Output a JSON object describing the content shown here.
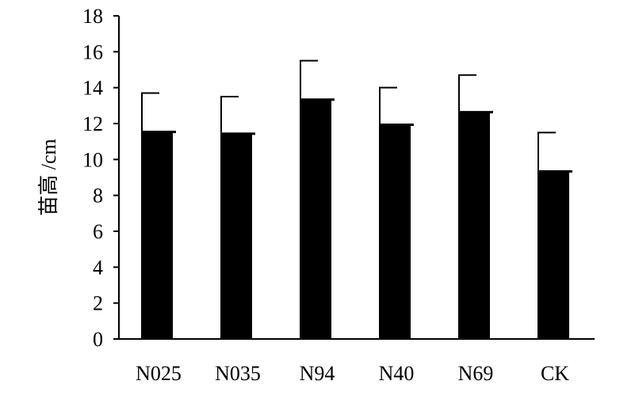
{
  "chart_data": {
    "type": "bar",
    "title": "",
    "xlabel": "",
    "ylabel": "苗高 /cm",
    "categories": [
      "N025",
      "N035",
      "N94",
      "N40",
      "N69",
      "CK"
    ],
    "values": [
      11.6,
      11.5,
      13.4,
      12.0,
      12.7,
      9.4
    ],
    "errors": [
      2.1,
      2.0,
      2.1,
      2.0,
      2.0,
      2.1
    ],
    "ylim": [
      0,
      18
    ],
    "yticks": [
      "0",
      "2",
      "4",
      "6",
      "8",
      "10",
      "12",
      "14",
      "16",
      "18"
    ],
    "grid": false,
    "bar_color": "#000000"
  }
}
